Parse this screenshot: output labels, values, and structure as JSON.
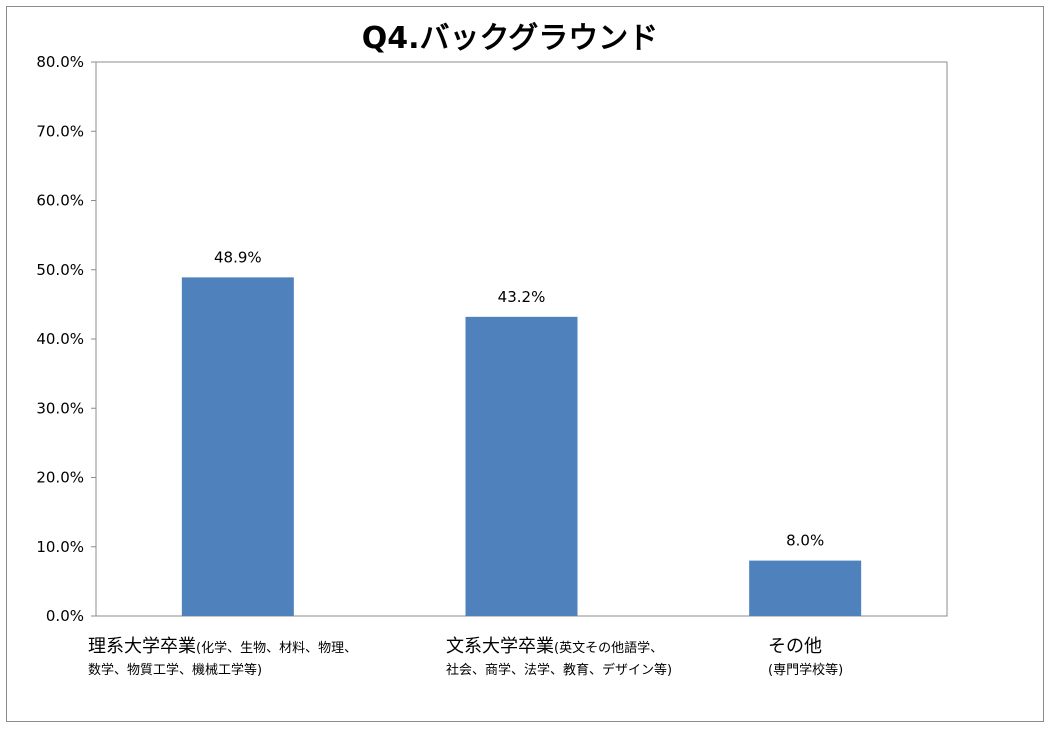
{
  "chart_data": {
    "type": "bar",
    "title": "Q4.バックグラウンド",
    "ylim": [
      0,
      80
    ],
    "yticks": [
      "0.0%",
      "10.0%",
      "20.0%",
      "30.0%",
      "40.0%",
      "50.0%",
      "60.0%",
      "70.0%",
      "80.0%"
    ],
    "grid": false,
    "legend": "none",
    "bar_color": "#4f81bd",
    "categories": [
      {
        "main": "理系大学卒業",
        "sub1": "(化学、生物、材料、物理、",
        "sub2": "数学、物質工学、機械工学等)"
      },
      {
        "main": "文系大学卒業",
        "sub1": "(英文その他語学、",
        "sub2": "社会、商学、法学、教育、デザイン等)"
      },
      {
        "main": "その他",
        "sub1": "",
        "sub2": "(専門学校等)"
      }
    ],
    "values": [
      48.9,
      43.2,
      8.0
    ],
    "data_labels": [
      "48.9%",
      "43.2%",
      "8.0%"
    ]
  }
}
